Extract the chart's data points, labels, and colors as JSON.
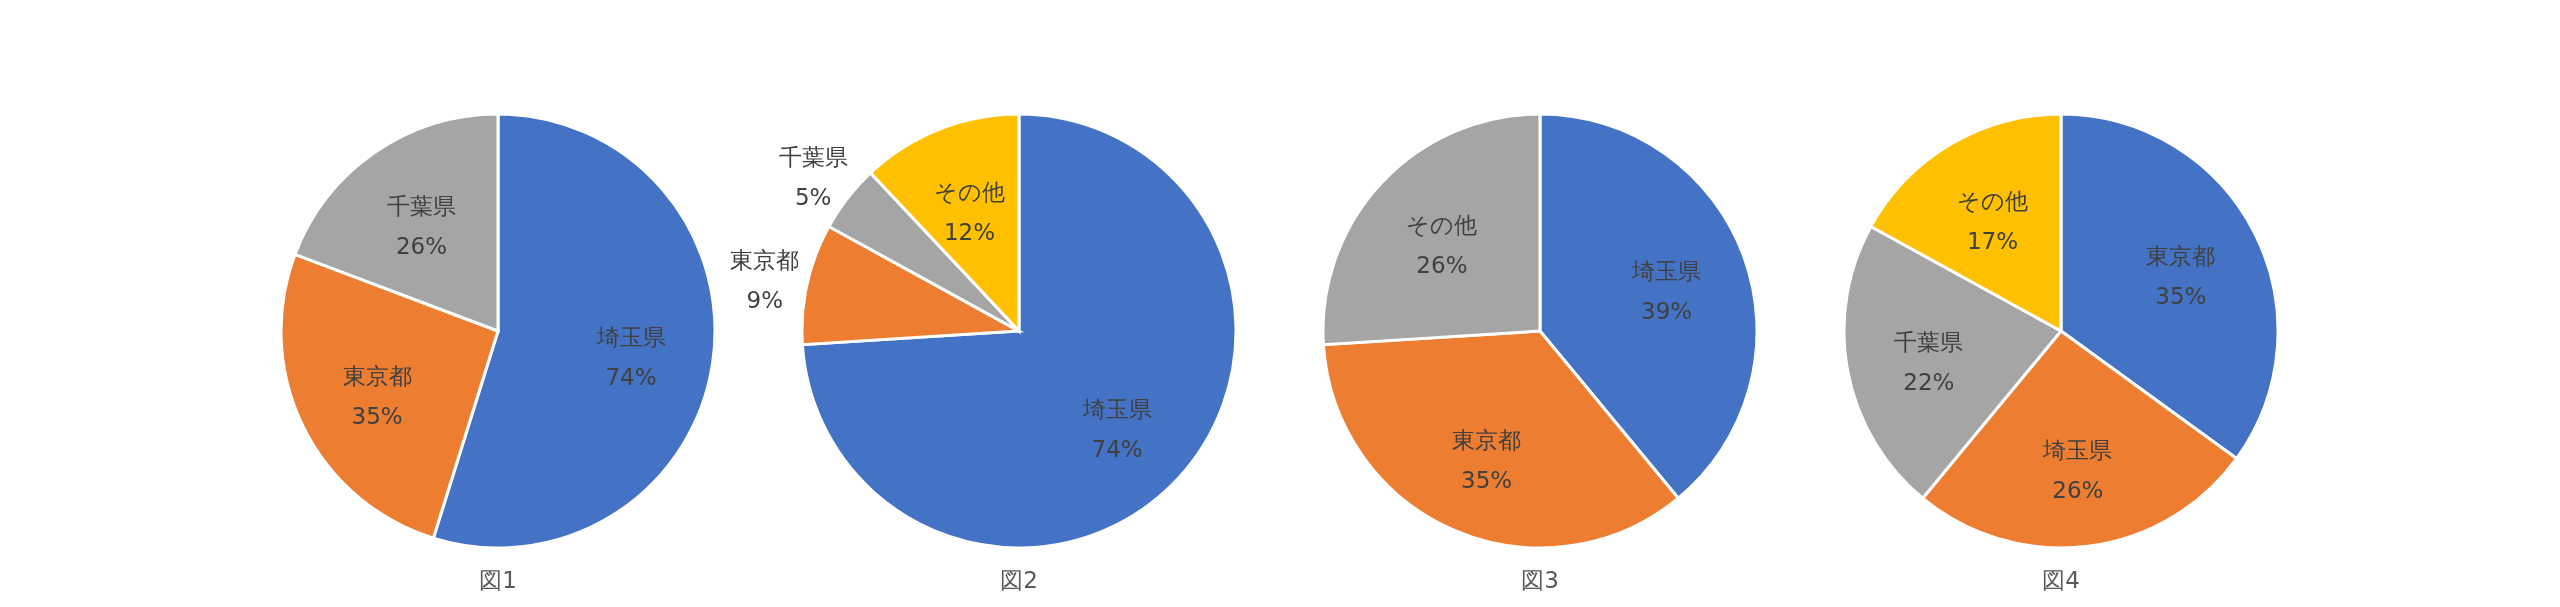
{
  "chart_data": [
    {
      "type": "pie",
      "title": "図1",
      "categories": [
        "埼玉県",
        "東京都",
        "千葉県"
      ],
      "values": [
        74,
        35,
        26
      ],
      "value_labels": [
        "74%",
        "35%",
        "26%"
      ],
      "colors": [
        "#4472c4",
        "#ed7d31",
        "#a5a5a5"
      ]
    },
    {
      "type": "pie",
      "title": "図2",
      "categories": [
        "埼玉県",
        "東京都",
        "千葉県",
        "その他"
      ],
      "values": [
        74,
        9,
        5,
        12
      ],
      "value_labels": [
        "74%",
        "9%",
        "5%",
        "12%"
      ],
      "colors": [
        "#4472c4",
        "#ed7d31",
        "#a5a5a5",
        "#ffc000"
      ]
    },
    {
      "type": "pie",
      "title": "図3",
      "categories": [
        "埼玉県",
        "東京都",
        "その他"
      ],
      "values": [
        39,
        35,
        26
      ],
      "value_labels": [
        "39%",
        "35%",
        "26%"
      ],
      "colors": [
        "#4472c4",
        "#ed7d31",
        "#a5a5a5"
      ]
    },
    {
      "type": "pie",
      "title": "図4",
      "categories": [
        "東京都",
        "埼玉県",
        "千葉県",
        "その他"
      ],
      "values": [
        35,
        26,
        22,
        17
      ],
      "value_labels": [
        "35%",
        "26%",
        "22%",
        "17%"
      ],
      "colors": [
        "#4472c4",
        "#ed7d31",
        "#a5a5a5",
        "#ffc000"
      ]
    }
  ]
}
